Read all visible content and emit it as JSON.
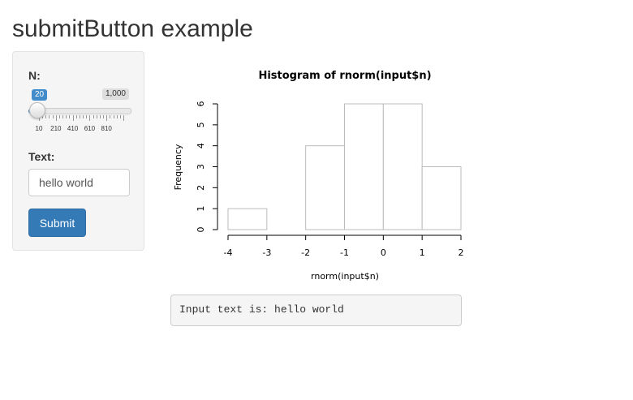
{
  "page": {
    "title": "submitButton example"
  },
  "sidebar": {
    "n_label": "N:",
    "slider": {
      "min_label": "20",
      "max_label": "1,000",
      "value": 20,
      "min": 10,
      "max": 1000,
      "tick_labels": [
        "10",
        "210",
        "410",
        "610",
        "810"
      ],
      "accent": "#428bca"
    },
    "text_label": "Text:",
    "text_value": "hello world",
    "submit_label": "Submit",
    "button_color": "#337ab7"
  },
  "chart_data": {
    "type": "bar",
    "title": "Histogram of rnorm(input$n)",
    "xlabel": "rnorm(input$n)",
    "ylabel": "Frequency",
    "bin_edges": [
      -4,
      -3,
      -2,
      -1,
      0,
      1,
      2
    ],
    "values": [
      1,
      0,
      4,
      6,
      6,
      3
    ],
    "xlim": [
      -4,
      2
    ],
    "ylim": [
      0,
      6
    ],
    "x_ticks": [
      "-4",
      "-3",
      "-2",
      "-1",
      "0",
      "1",
      "2"
    ],
    "y_ticks": [
      "0",
      "1",
      "2",
      "3",
      "4",
      "5",
      "6"
    ]
  },
  "output": {
    "text": "Input text is: hello world"
  }
}
